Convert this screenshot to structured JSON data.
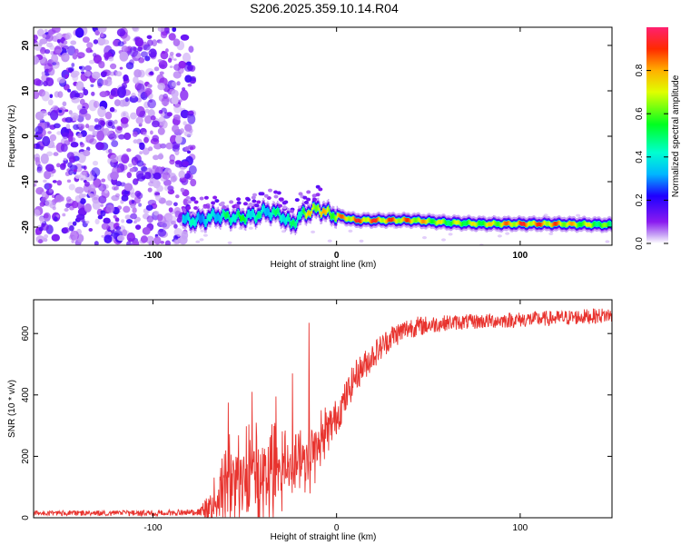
{
  "title": "S206.2025.359.10.14.R04",
  "chart_data": [
    {
      "type": "heatmap",
      "name": "spectrogram",
      "xlabel": "Height of straight line (km)",
      "ylabel": "Frequency (Hz)",
      "xlim": [
        -165,
        150
      ],
      "ylim": [
        -24,
        24
      ],
      "xticks": [
        -100,
        0,
        100
      ],
      "yticks": [
        -20,
        -10,
        0,
        10,
        20
      ],
      "colorbar": {
        "label": "Normalized spectral amplitude",
        "range": [
          0,
          1
        ],
        "ticks": [
          "0.0",
          "0.2",
          "0.4",
          "0.6",
          "0.8"
        ],
        "tick_values": [
          0,
          0.2,
          0.4,
          0.6,
          0.8
        ]
      },
      "noise_region": {
        "x_range": [
          -165,
          -82
        ],
        "description_color": "#9a2bf0"
      },
      "signal_ridge": {
        "x": [
          -84,
          -75,
          -65,
          -55,
          -45,
          -38,
          -30,
          -25,
          -20,
          -15,
          -10,
          -5,
          0,
          10,
          20,
          40,
          60,
          80,
          100,
          120,
          150
        ],
        "freq": [
          -18.5,
          -18.5,
          -17.5,
          -18,
          -17.5,
          -16.5,
          -17.5,
          -19.5,
          -17.5,
          -16.5,
          -16,
          -17,
          -17.5,
          -18.5,
          -18.5,
          -18.5,
          -19,
          -19.3,
          -19.3,
          -19.3,
          -19.5
        ],
        "amplitude": [
          0.5,
          0.4,
          0.45,
          0.6,
          0.5,
          0.45,
          0.55,
          0.5,
          0.6,
          0.8,
          0.9,
          0.75,
          0.85,
          0.95,
          0.95,
          0.9,
          0.7,
          0.75,
          0.95,
          0.9,
          0.6
        ]
      }
    },
    {
      "type": "line",
      "name": "snr",
      "xlabel": "Height of straight line (km)",
      "ylabel": "SNR (10 * v/v)",
      "xlim": [
        -165,
        150
      ],
      "ylim": [
        0,
        710
      ],
      "xticks": [
        -100,
        0,
        100
      ],
      "yticks": [
        0,
        200,
        400,
        600
      ],
      "color": "#e8332e",
      "trend": {
        "x": [
          -165,
          -100,
          -75,
          -68,
          -60,
          -50,
          -40,
          -30,
          -25,
          -20,
          -15,
          -10,
          -5,
          0,
          5,
          10,
          20,
          30,
          40,
          60,
          80,
          100,
          120,
          150
        ],
        "y": [
          15,
          15,
          18,
          30,
          100,
          130,
          140,
          150,
          160,
          190,
          200,
          240,
          280,
          330,
          390,
          460,
          530,
          590,
          620,
          635,
          640,
          645,
          650,
          660
        ]
      },
      "noise_amplitude": {
        "x": [
          -165,
          -75,
          -68,
          -60,
          -50,
          -40,
          -30,
          -25,
          -15,
          0,
          20,
          40,
          60,
          150
        ],
        "amp": [
          8,
          10,
          60,
          150,
          150,
          150,
          140,
          80,
          110,
          60,
          45,
          35,
          25,
          25
        ]
      },
      "spikes": [
        {
          "x": -59,
          "y": 375
        },
        {
          "x": -46,
          "y": 410
        },
        {
          "x": -33,
          "y": 395
        },
        {
          "x": -24,
          "y": 470
        },
        {
          "x": -15,
          "y": 635
        }
      ]
    }
  ]
}
